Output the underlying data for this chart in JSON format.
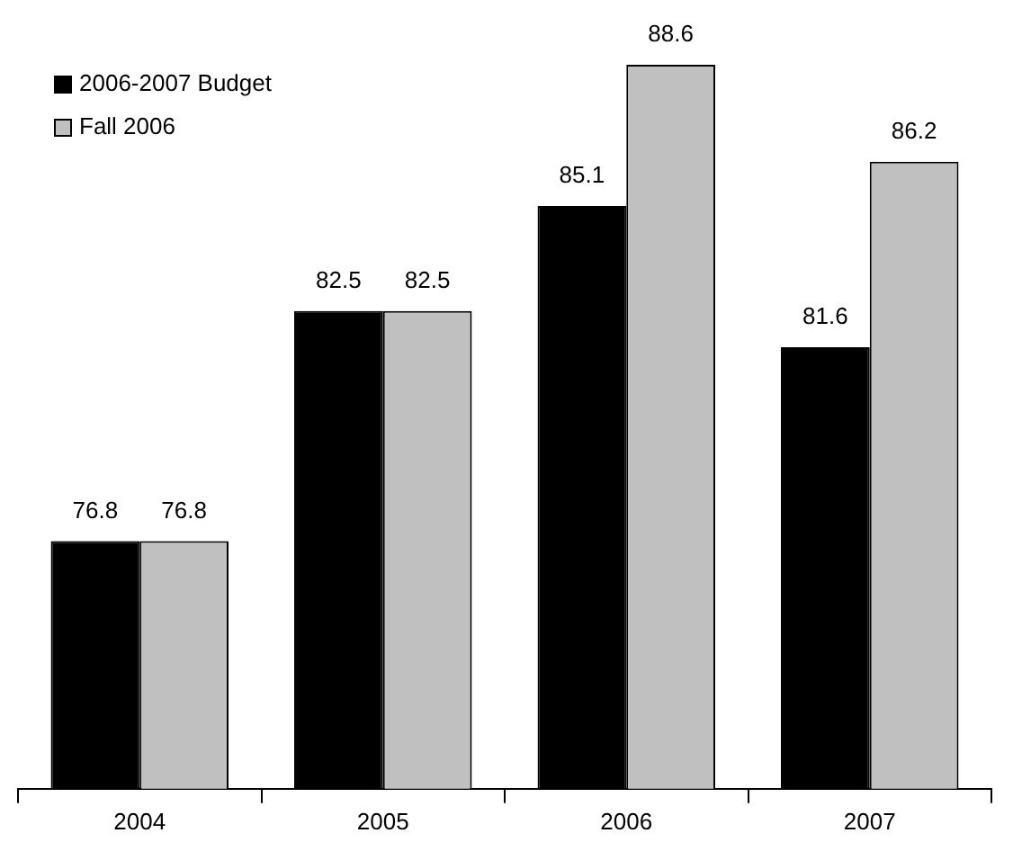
{
  "chart_data": {
    "type": "bar",
    "categories": [
      "2004",
      "2005",
      "2006",
      "2007"
    ],
    "series": [
      {
        "name": "2006-2007 Budget",
        "color": "#000000",
        "values": [
          76.8,
          82.5,
          85.1,
          81.6
        ]
      },
      {
        "name": "Fall 2006",
        "color": "#c0c0c0",
        "values": [
          76.8,
          82.5,
          88.6,
          86.2
        ]
      }
    ],
    "tick_labels": "x",
    "data_labels": true,
    "legend": "top left",
    "grid": false
  }
}
